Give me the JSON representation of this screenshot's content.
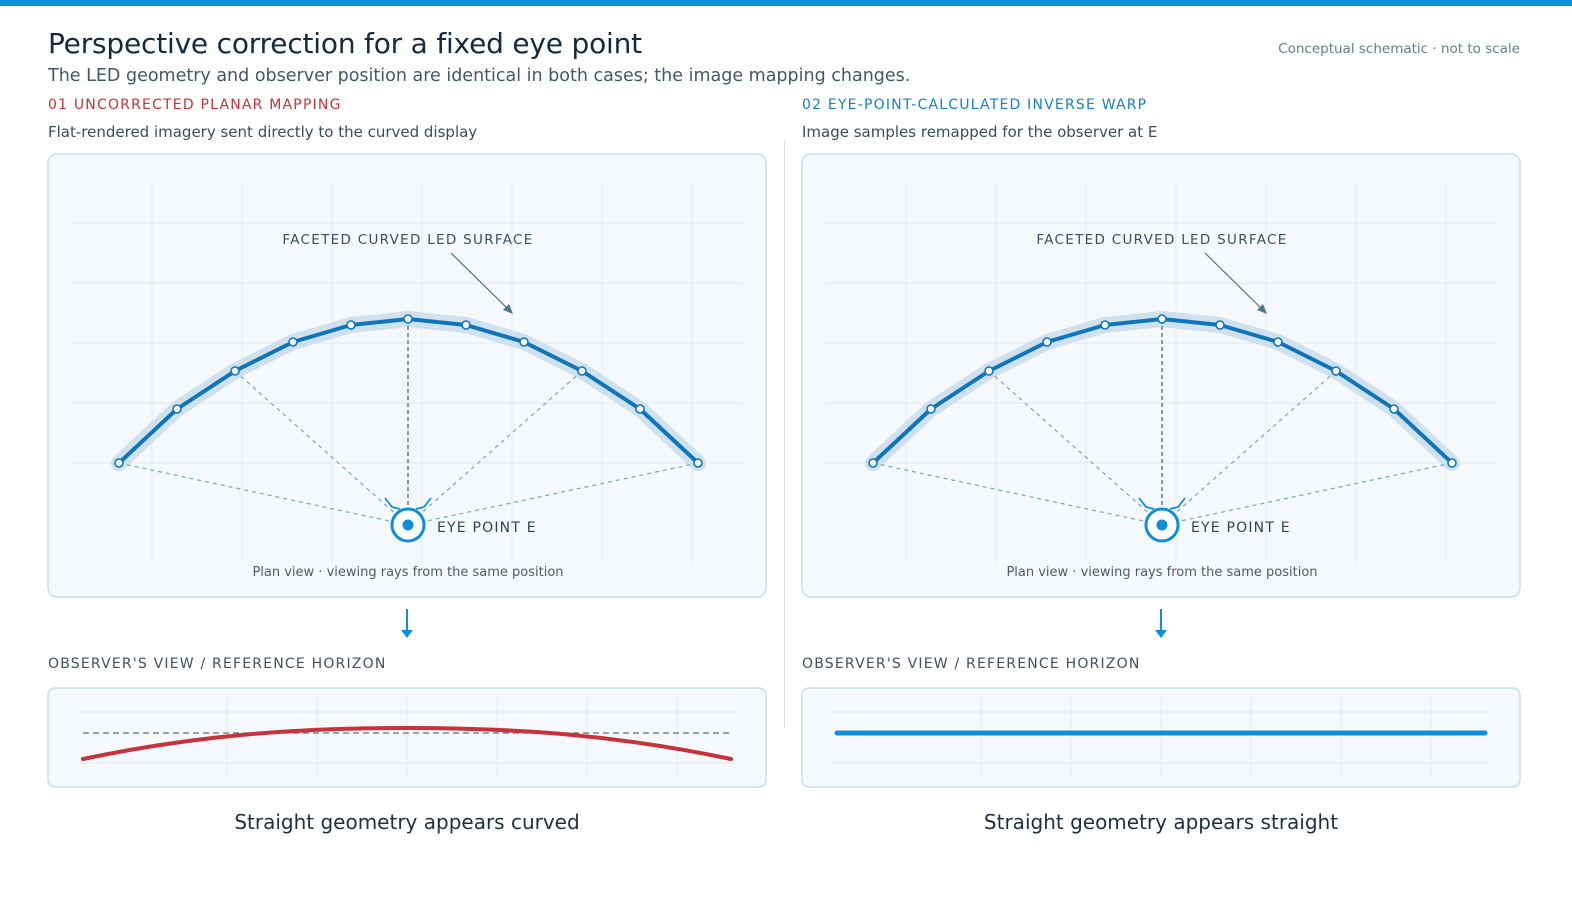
{
  "title": "Perspective correction for a fixed eye point",
  "subtitle": "The LED geometry and observer position are identical in both cases; the image mapping changes.",
  "note": "Conceptual schematic · not to scale",
  "colors": {
    "accent": "#0d8fd6",
    "led": "#0e76b8",
    "warning": "#c8323a",
    "grid": "#e2e9f0",
    "panel_bg": "#f6f9fc",
    "panel_border": "#c9dcea"
  },
  "panels": [
    {
      "label": "01 UNCORRECTED PLANAR MAPPING",
      "label_color": "#c8323a",
      "description": "Flat-rendered imagery sent directly to the curved display",
      "surface_label": "FACETED CURVED LED SURFACE",
      "eye_label": "EYE POINT E",
      "plan_caption": "Plan view · viewing rays from the same position",
      "view_label": "OBSERVER'S VIEW / REFERENCE HORIZON",
      "result": "Straight geometry appears curved",
      "corrected": false
    },
    {
      "label": "02 EYE-POINT-CALCULATED INVERSE WARP",
      "label_color": "#1283c7",
      "description": "Image samples remapped for the observer at E",
      "surface_label": "FACETED CURVED LED SURFACE",
      "eye_label": "EYE POINT E",
      "plan_caption": "Plan view · viewing rays from the same position",
      "view_label": "OBSERVER'S VIEW / REFERENCE HORIZON",
      "result": "Straight geometry appears straight",
      "corrected": true
    }
  ],
  "icons": {
    "eye_point": "eye-target-icon",
    "flow_arrow": "arrow-down-icon"
  }
}
